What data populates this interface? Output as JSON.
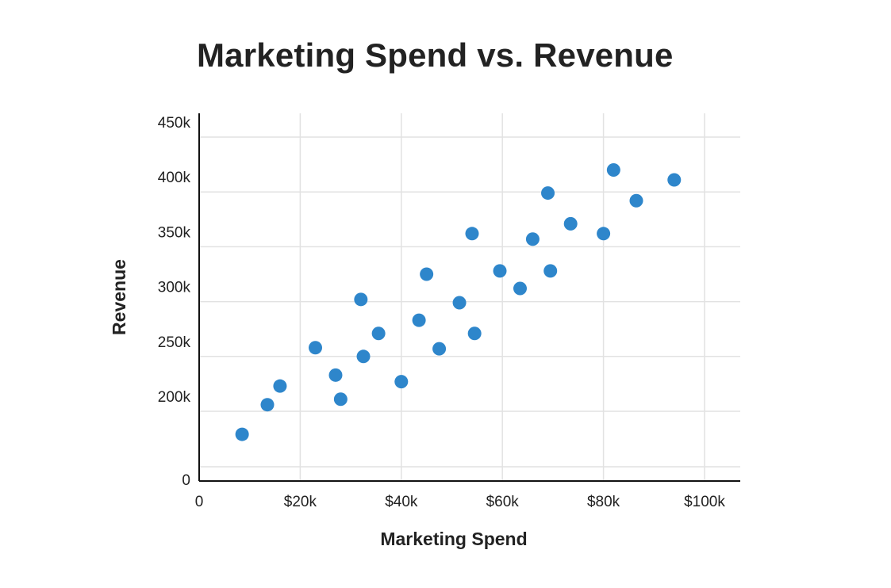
{
  "chart_data": {
    "type": "scatter",
    "title": "Marketing Spend vs. Revenue",
    "xlabel": "Marketing Spend",
    "ylabel": "Revenue",
    "x_ticks": [
      {
        "value": 0,
        "label": "0"
      },
      {
        "value": 20000,
        "label": "$20k"
      },
      {
        "value": 40000,
        "label": "$40k"
      },
      {
        "value": 60000,
        "label": "$60k"
      },
      {
        "value": 80000,
        "label": "$80k"
      },
      {
        "value": 100000,
        "label": "$100k"
      }
    ],
    "y_ticks": [
      {
        "value": 0,
        "label": "0"
      },
      {
        "value": 200000,
        "label": "200k"
      },
      {
        "value": 250000,
        "label": "250k"
      },
      {
        "value": 300000,
        "label": "300k"
      },
      {
        "value": 350000,
        "label": "350k"
      },
      {
        "value": 400000,
        "label": "400k"
      },
      {
        "value": 450000,
        "label": "450k"
      }
    ],
    "grid": true,
    "colors": {
      "point": "#2e86cb",
      "grid": "#e2e2e2",
      "axis": "#111111"
    },
    "series": [
      {
        "points": [
          {
            "x": 8500,
            "y": 179000
          },
          {
            "x": 13500,
            "y": 206000
          },
          {
            "x": 16000,
            "y": 223000
          },
          {
            "x": 23000,
            "y": 258000
          },
          {
            "x": 27000,
            "y": 233000
          },
          {
            "x": 28000,
            "y": 211000
          },
          {
            "x": 32000,
            "y": 302000
          },
          {
            "x": 32500,
            "y": 250000
          },
          {
            "x": 35500,
            "y": 271000
          },
          {
            "x": 40000,
            "y": 227000
          },
          {
            "x": 43500,
            "y": 283000
          },
          {
            "x": 45000,
            "y": 325000
          },
          {
            "x": 47500,
            "y": 257000
          },
          {
            "x": 51500,
            "y": 299000
          },
          {
            "x": 54000,
            "y": 362000
          },
          {
            "x": 54500,
            "y": 271000
          },
          {
            "x": 59500,
            "y": 328000
          },
          {
            "x": 63500,
            "y": 312000
          },
          {
            "x": 66000,
            "y": 357000
          },
          {
            "x": 69000,
            "y": 399000
          },
          {
            "x": 69500,
            "y": 328000
          },
          {
            "x": 73500,
            "y": 371000
          },
          {
            "x": 80000,
            "y": 362000
          },
          {
            "x": 82000,
            "y": 420000
          },
          {
            "x": 86500,
            "y": 392000
          },
          {
            "x": 94000,
            "y": 411000
          }
        ]
      }
    ]
  }
}
